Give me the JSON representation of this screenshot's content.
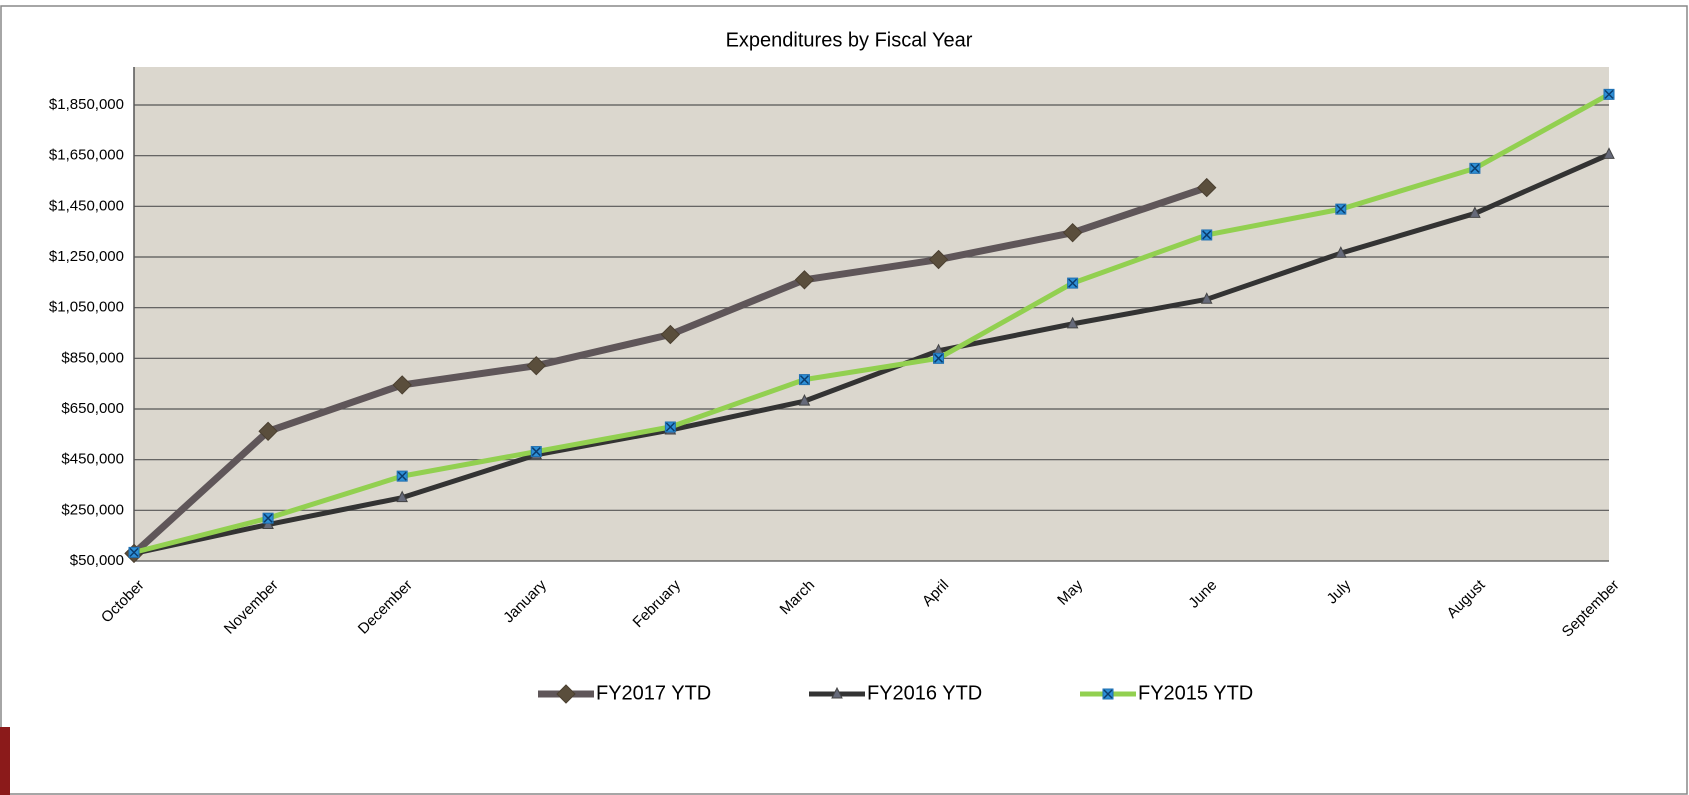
{
  "chart_data": {
    "type": "line",
    "title": "Expenditures by Fiscal Year",
    "categories": [
      "October",
      "November",
      "December",
      "January",
      "February",
      "March",
      "April",
      "May",
      "June",
      "July",
      "August",
      "September"
    ],
    "series": [
      {
        "name": "FY2017 YTD",
        "color": "#5f5659",
        "marker": "diamond",
        "values": [
          80000,
          562000,
          745000,
          821000,
          944000,
          1160000,
          1240000,
          1346000,
          1524000,
          null,
          null,
          null
        ]
      },
      {
        "name": "FY2016 YTD",
        "color": "#333333",
        "marker": "triangle",
        "values": [
          80000,
          194000,
          300000,
          469000,
          567000,
          681000,
          880000,
          986000,
          1083000,
          1265000,
          1422000,
          1655000
        ]
      },
      {
        "name": "FY2015 YTD",
        "color": "#92d050",
        "marker": "square",
        "values": [
          84000,
          219000,
          385000,
          482000,
          579000,
          766000,
          850000,
          1147000,
          1337000,
          1439000,
          1600000,
          1892000
        ]
      }
    ],
    "ylim": [
      50000,
      2000000
    ],
    "yticks": [
      {
        "value": 50000,
        "label": "$50,000"
      },
      {
        "value": 250000,
        "label": "$250,000"
      },
      {
        "value": 450000,
        "label": "$450,000"
      },
      {
        "value": 650000,
        "label": "$650,000"
      },
      {
        "value": 850000,
        "label": "$850,000"
      },
      {
        "value": 1050000,
        "label": "$1,050,000"
      },
      {
        "value": 1250000,
        "label": "$1,250,000"
      },
      {
        "value": 1450000,
        "label": "$1,450,000"
      },
      {
        "value": 1650000,
        "label": "$1,650,000"
      },
      {
        "value": 1850000,
        "label": "$1,850,000"
      }
    ],
    "grid": true,
    "legend": "bottom",
    "plot_background": "#dbd7ce"
  }
}
